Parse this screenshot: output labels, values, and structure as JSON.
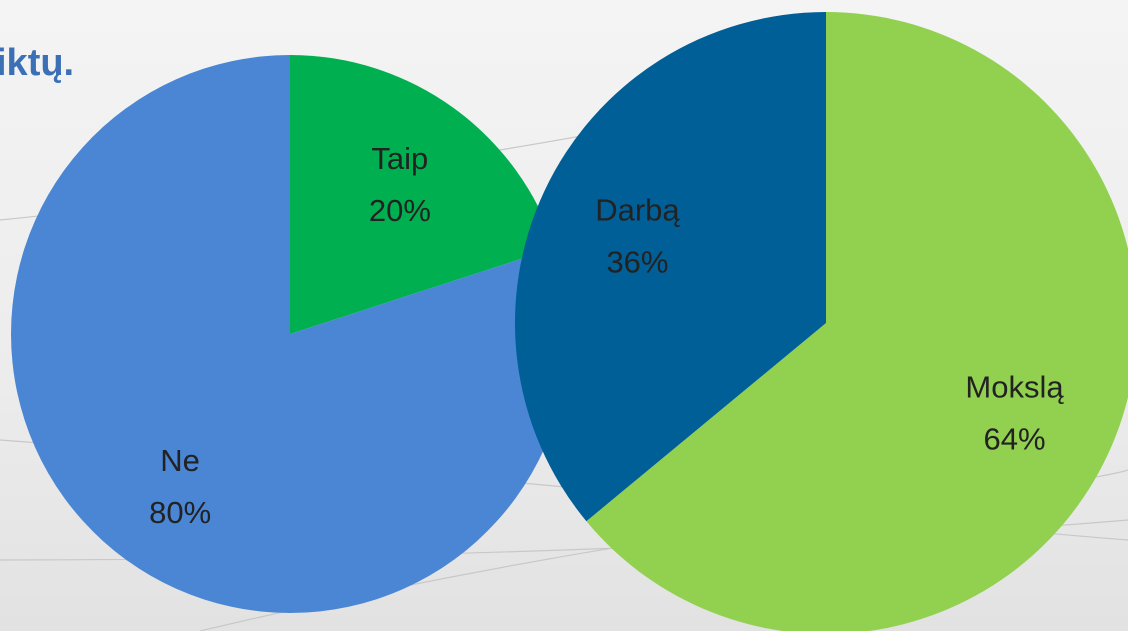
{
  "heading": "iktų.",
  "chart_data": [
    {
      "type": "pie",
      "categories": [
        "Taip",
        "Ne"
      ],
      "values": [
        20,
        80
      ],
      "value_labels": [
        "20%",
        "80%"
      ],
      "colors": [
        "#00b050",
        "#4a86d4"
      ]
    },
    {
      "type": "pie",
      "categories": [
        "Mokslą",
        "Darbą"
      ],
      "values": [
        64,
        36
      ],
      "value_labels": [
        "64%",
        "36%"
      ],
      "colors": [
        "#92d050",
        "#005f96"
      ]
    }
  ]
}
